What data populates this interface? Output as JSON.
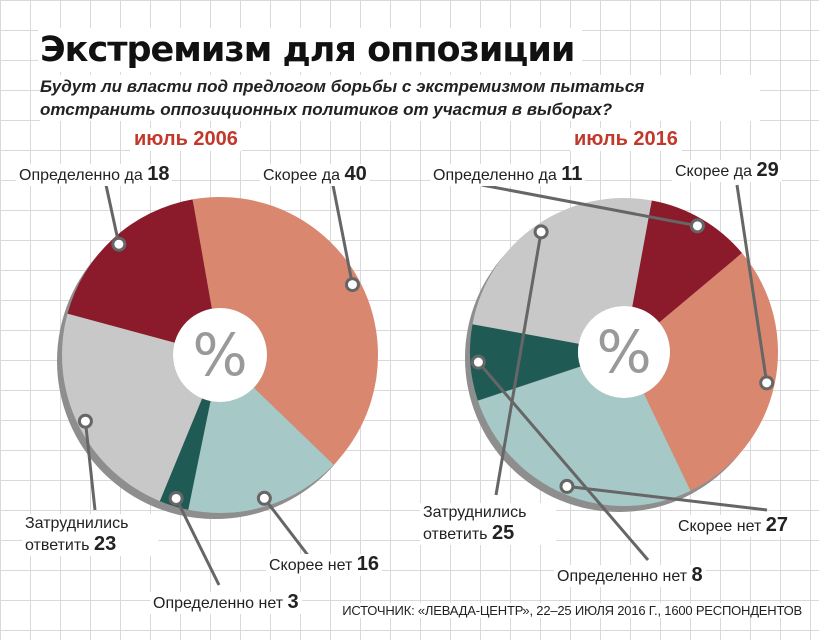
{
  "title": "Экстремизм для оппозиции",
  "subtitle": "Будут ли власти под предлогом борьбы с экстремизмом пытаться отстранить оппозиционных политиков от участия в выборах?",
  "center_symbol": "%",
  "source": "ИСТОЧНИК: «ЛЕВАДА-ЦЕНТР», 22–25 ИЮЛЯ 2016 Г., 1600 РЕСПОНДЕНТОВ",
  "chart_data": [
    {
      "type": "pie",
      "title": "июль 2006",
      "slices": [
        {
          "label": "Скорее да",
          "value": 40,
          "color": "#d9876f"
        },
        {
          "label": "Скорее нет",
          "value": 16,
          "color": "#a6c8c6"
        },
        {
          "label": "Определенно нет",
          "value": 3,
          "color": "#1f5a55"
        },
        {
          "label": "Затруднились ответить",
          "value": 23,
          "color": "#c8c8c8"
        },
        {
          "label": "Определенно да",
          "value": 18,
          "color": "#8b1a2b"
        }
      ]
    },
    {
      "type": "pie",
      "title": "июль 2016",
      "slices": [
        {
          "label": "Скорее да",
          "value": 29,
          "color": "#d9876f"
        },
        {
          "label": "Скорее нет",
          "value": 27,
          "color": "#a6c8c6"
        },
        {
          "label": "Определенно нет",
          "value": 8,
          "color": "#1f5a55"
        },
        {
          "label": "Затруднились ответить",
          "value": 25,
          "color": "#c8c8c8"
        },
        {
          "label": "Определенно да",
          "value": 11,
          "color": "#8b1a2b"
        }
      ]
    }
  ]
}
